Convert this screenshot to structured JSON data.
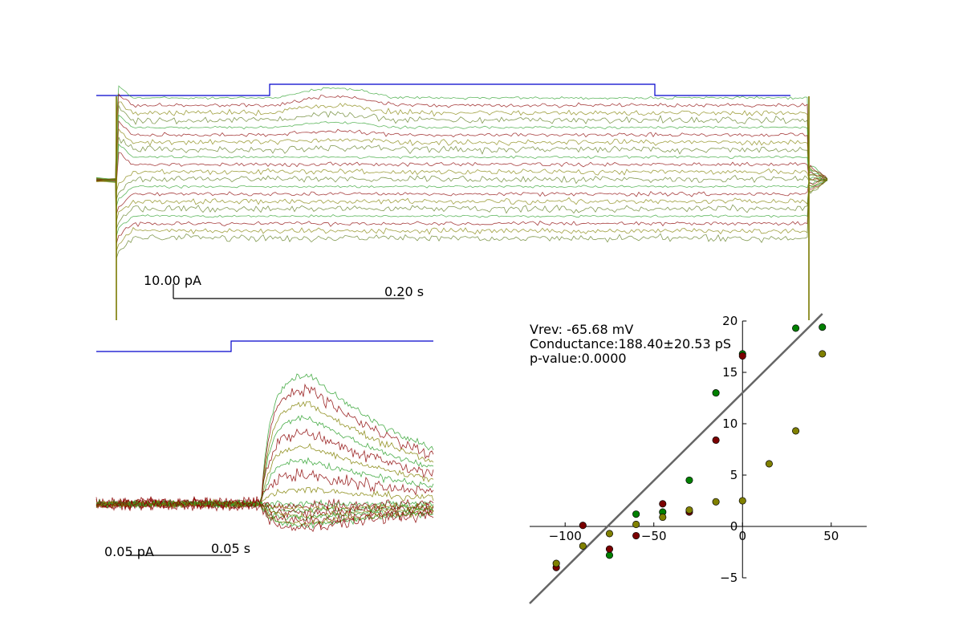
{
  "chart_data": [
    {
      "type": "line",
      "panel": "full-trace-overlay",
      "title": "",
      "xlabel": "",
      "ylabel": "",
      "grid": false,
      "trace_count": 20,
      "trace_colors": [
        "#2ca02c",
        "#8b0000",
        "#808000",
        "#5a7a1a"
      ],
      "command_color": "#0000cc",
      "scalebar": {
        "current_label": "10.00 pA",
        "time_label": "0.20 s"
      }
    },
    {
      "type": "line",
      "panel": "step-onset-zoom",
      "title": "",
      "xlabel": "",
      "ylabel": "",
      "grid": false,
      "trace_count": 20,
      "trace_colors": [
        "#2ca02c",
        "#8b0000",
        "#808000"
      ],
      "command_color": "#0000cc",
      "scalebar": {
        "current_label": "0.05 pA",
        "time_label": "0.05 s"
      }
    },
    {
      "type": "scatter",
      "panel": "iv-plot",
      "title": "",
      "xlabel": "",
      "ylabel": "",
      "grid": false,
      "xlim": [
        -120,
        70
      ],
      "ylim": [
        -5,
        20
      ],
      "xticks": [
        -100,
        -50,
        0,
        50
      ],
      "yticks": [
        -5,
        0,
        5,
        10,
        15,
        20
      ],
      "annotations": [
        "Vrev: -65.68 mV",
        "Conductance:188.40±20.53 pS",
        "p-value:0.0000"
      ],
      "series": [
        {
          "color": "#008000",
          "points": [
            [
              -75,
              -2.8
            ],
            [
              -60,
              1.2
            ],
            [
              -45,
              1.4
            ],
            [
              -30,
              4.5
            ],
            [
              -15,
              13
            ],
            [
              0,
              16.8
            ],
            [
              30,
              19.3
            ],
            [
              45,
              19.4
            ]
          ]
        },
        {
          "color": "#7a0000",
          "points": [
            [
              -105,
              -4
            ],
            [
              -90,
              0.1
            ],
            [
              -75,
              -2.2
            ],
            [
              -60,
              -0.9
            ],
            [
              -45,
              2.2
            ],
            [
              -30,
              1.4
            ],
            [
              -15,
              8.4
            ],
            [
              0,
              16.6
            ]
          ]
        },
        {
          "color": "#808000",
          "points": [
            [
              -105,
              -3.6
            ],
            [
              -90,
              -1.9
            ],
            [
              -75,
              -0.7
            ],
            [
              -60,
              0.2
            ],
            [
              -45,
              0.9
            ],
            [
              -30,
              1.6
            ],
            [
              -15,
              2.4
            ],
            [
              0,
              2.5
            ],
            [
              15,
              6.1
            ],
            [
              30,
              9.3
            ],
            [
              45,
              16.8
            ]
          ]
        }
      ],
      "fit_line": {
        "color": "#666666",
        "x": [
          -120,
          45
        ],
        "y": [
          -7.5,
          20.7
        ]
      }
    }
  ]
}
